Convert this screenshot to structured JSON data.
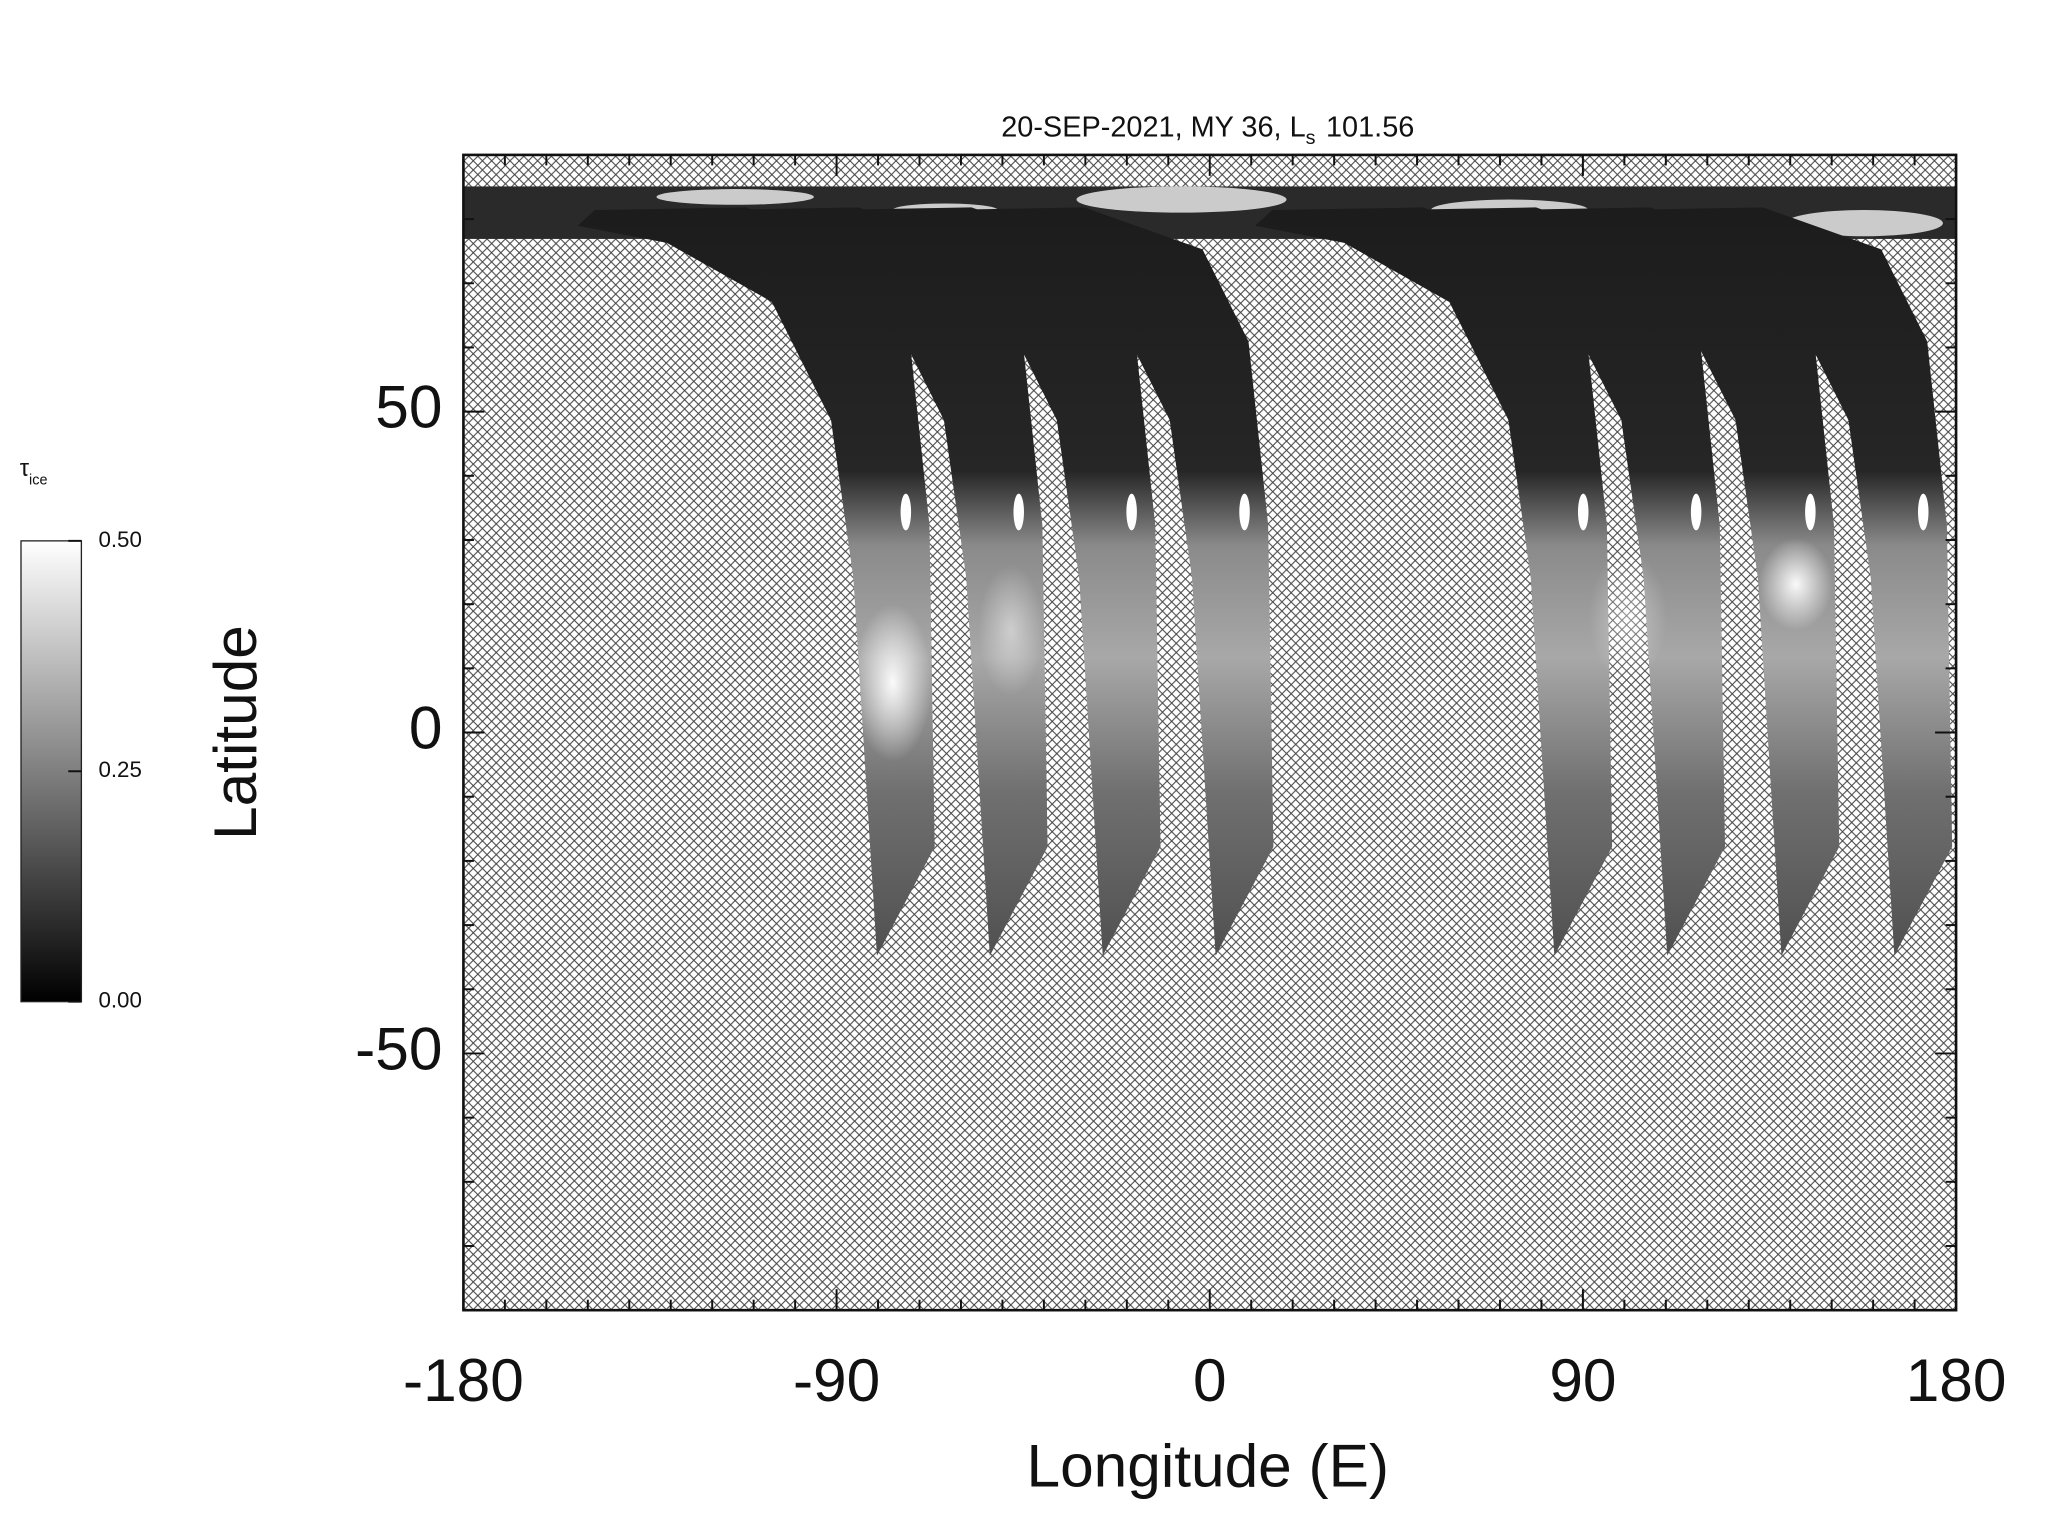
{
  "chart_data": {
    "type": "map",
    "title": {
      "text": "20-SEP-2021, MY 36,  L",
      "subscript": "s",
      "value": "101.56"
    },
    "xlabel": "Longitude (E)",
    "ylabel": "Latitude",
    "xlim": [
      -180,
      180
    ],
    "xticks": [
      -180,
      -90,
      0,
      90,
      180
    ],
    "xminorticks": [
      -170,
      -160,
      -150,
      -140,
      -130,
      -120,
      -110,
      -100,
      -80,
      -70,
      -60,
      -50,
      -40,
      -30,
      -20,
      -10,
      10,
      20,
      30,
      40,
      50,
      60,
      70,
      80,
      100,
      110,
      120,
      130,
      140,
      150,
      160,
      170
    ],
    "ylim": [
      -90,
      90
    ],
    "yticks": [
      -50,
      0,
      50
    ],
    "yminorticks": [
      -80,
      -70,
      -60,
      -40,
      -30,
      -20,
      -10,
      10,
      20,
      30,
      40,
      60,
      70,
      80
    ],
    "colorbar": {
      "label": "τ",
      "label_subscript": "ice",
      "lim": [
        0,
        0.5
      ],
      "ticks": [
        {
          "value": 0,
          "label": "0.00"
        },
        0.25,
        {
          "value": 0.5,
          "label": "0.50"
        }
      ]
    }
  }
}
